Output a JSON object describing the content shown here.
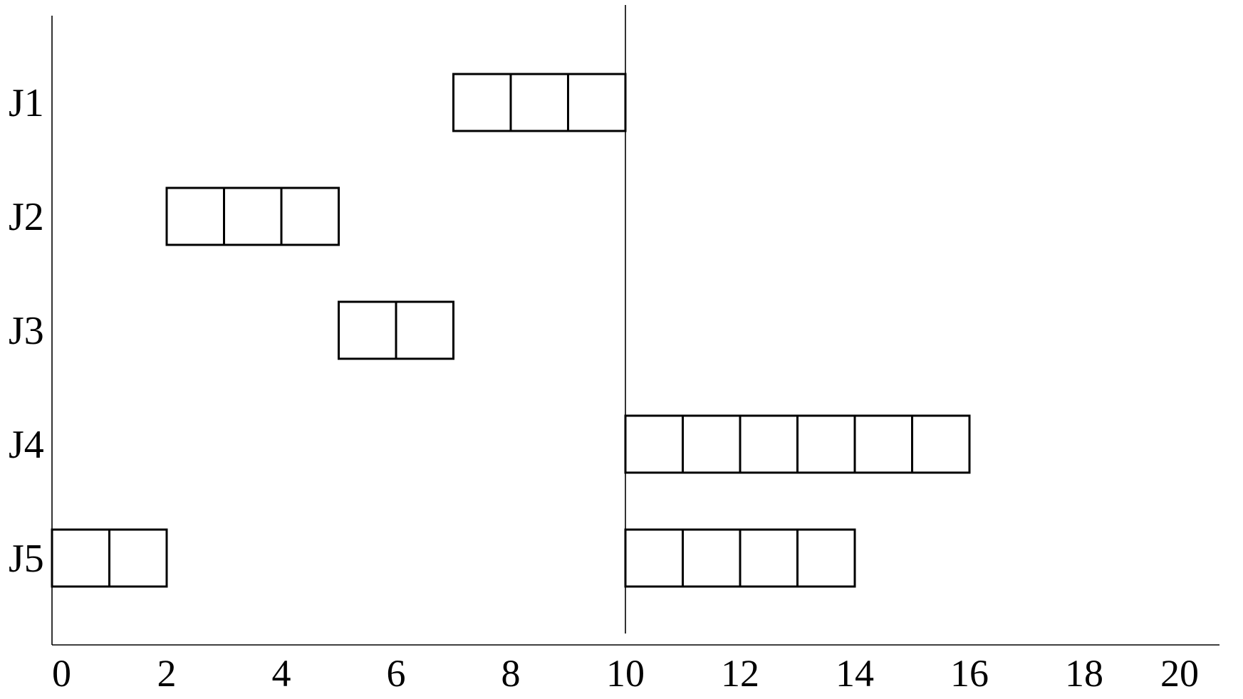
{
  "chart_data": {
    "type": "gantt",
    "title": "",
    "xlabel": "",
    "ylabel": "",
    "xlim": [
      0,
      20
    ],
    "x_ticks": [
      0,
      2,
      4,
      6,
      8,
      10,
      12,
      14,
      16,
      18,
      20
    ],
    "x_tick_labels": [
      "0",
      "2",
      "4",
      "6",
      "8",
      "10",
      "12",
      "14",
      "16",
      "18",
      "20"
    ],
    "grid": false,
    "marker_line_x": 10,
    "rows": [
      {
        "label": "J1",
        "blocks": [
          {
            "start": 7,
            "units": 3
          }
        ]
      },
      {
        "label": "J2",
        "blocks": [
          {
            "start": 2,
            "units": 3
          }
        ]
      },
      {
        "label": "J3",
        "blocks": [
          {
            "start": 5,
            "units": 2
          }
        ]
      },
      {
        "label": "J4",
        "blocks": [
          {
            "start": 10,
            "units": 6
          }
        ]
      },
      {
        "label": "J5",
        "blocks": [
          {
            "start": 0,
            "units": 2
          },
          {
            "start": 10,
            "units": 4
          }
        ]
      }
    ],
    "colors": {
      "stroke": "#000000",
      "fill": "#ffffff"
    }
  }
}
